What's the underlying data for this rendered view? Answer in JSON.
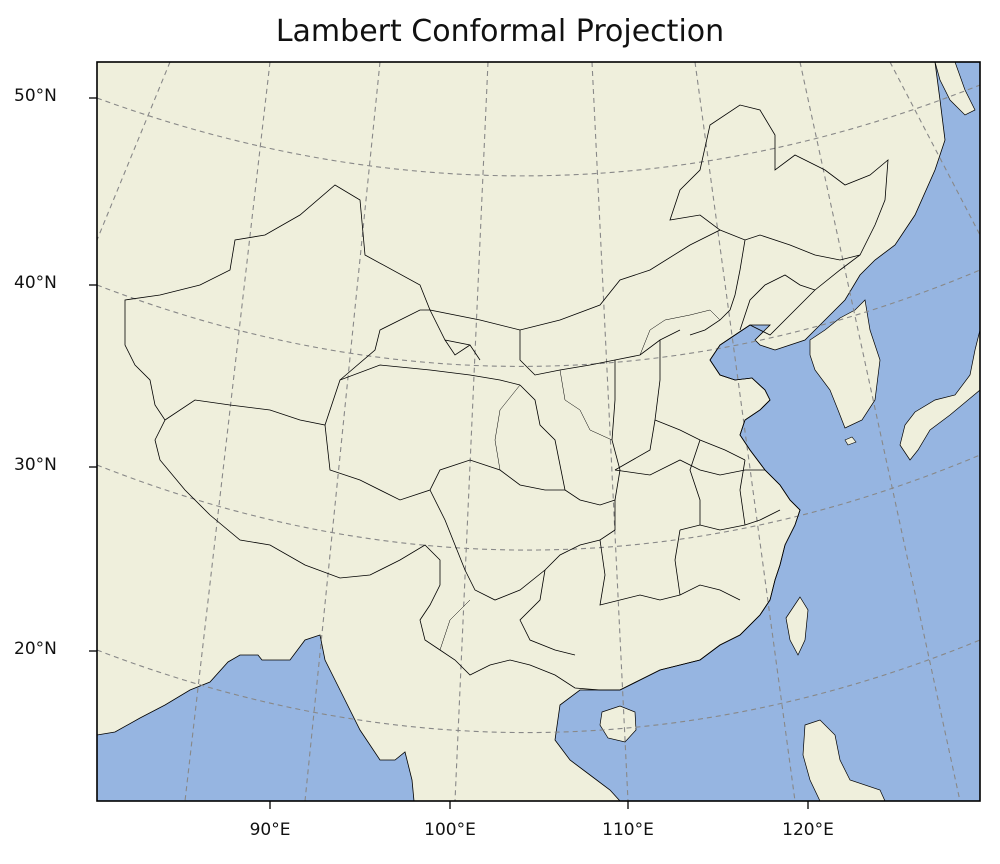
{
  "title": "Lambert Conformal Projection",
  "axes": {
    "y_ticks": [
      "50°N",
      "40°N",
      "30°N",
      "20°N"
    ],
    "x_ticks": [
      "90°E",
      "100°E",
      "110°E",
      "120°E"
    ]
  },
  "colors": {
    "land": "#efefdc",
    "ocean": "#96b5e1",
    "border": "#000000",
    "gridline": "#888888"
  },
  "gridlines": "dashed"
}
